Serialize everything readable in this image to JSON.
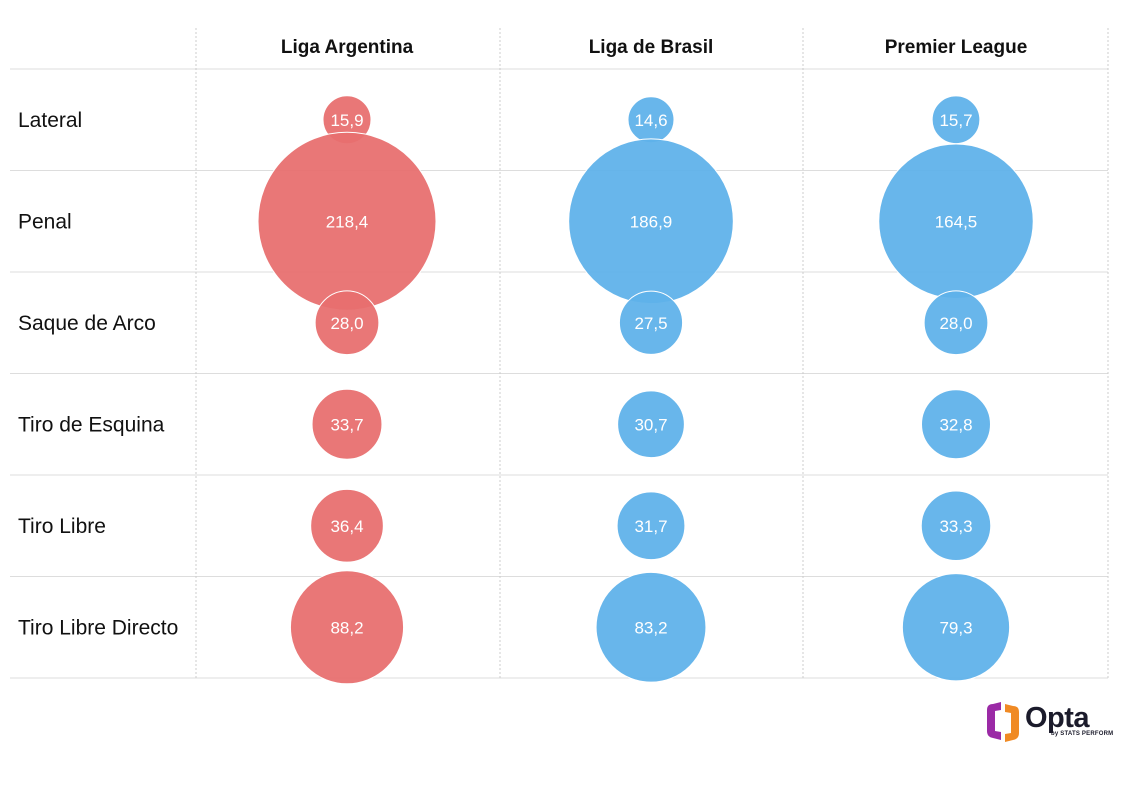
{
  "colors": {
    "argentina": "#e86f6f",
    "others": "#5fb1ea",
    "grid": "#dddddd",
    "label": "#ffffff"
  },
  "chart_data": {
    "type": "bubble-table",
    "title": "",
    "columns": [
      "Liga Argentina",
      "Liga de Brasil",
      "Premier League"
    ],
    "rows": [
      "Lateral",
      "Penal",
      "Saque de Arco",
      "Tiro de Esquina",
      "Tiro Libre",
      "Tiro Libre Directo"
    ],
    "values": [
      [
        15.9,
        14.6,
        15.7
      ],
      [
        218.4,
        186.9,
        164.5
      ],
      [
        28.0,
        27.5,
        28.0
      ],
      [
        33.7,
        30.7,
        32.8
      ],
      [
        36.4,
        31.7,
        33.3
      ],
      [
        88.2,
        83.2,
        79.3
      ]
    ],
    "labels": [
      [
        "15,9",
        "14,6",
        "15,7"
      ],
      [
        "218,4",
        "186,9",
        "164,5"
      ],
      [
        "28,0",
        "27,5",
        "28,0"
      ],
      [
        "33,7",
        "30,7",
        "32,8"
      ],
      [
        "36,4",
        "31,7",
        "33,3"
      ],
      [
        "88,2",
        "83,2",
        "79,3"
      ]
    ],
    "series_colors": [
      "#e86f6f",
      "#5fb1ea",
      "#5fb1ea"
    ]
  },
  "logo": {
    "word": "Opta",
    "sub": "by STATS PERFORM"
  }
}
